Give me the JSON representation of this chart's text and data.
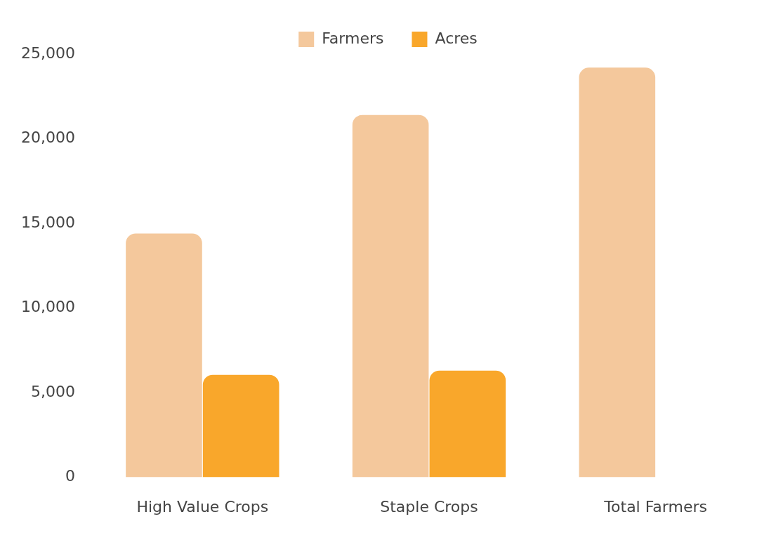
{
  "chart_data": {
    "type": "bar",
    "categories": [
      "High Value Crops",
      "Staple Crops",
      "Total Farmers"
    ],
    "series": [
      {
        "name": "Farmers",
        "color": "#f4c89c",
        "values": [
          14400,
          21400,
          24200
        ]
      },
      {
        "name": "Acres",
        "color": "#f9a72b",
        "values": [
          6050,
          6300,
          null
        ]
      }
    ],
    "ylim": [
      0,
      25000
    ],
    "yticks": [
      0,
      {
        "value": 5000,
        "label": "5,000"
      },
      {
        "value": 10000,
        "label": "10,000"
      },
      {
        "value": 15000,
        "label": "15,000"
      },
      {
        "value": 20000,
        "label": "20,000"
      },
      {
        "value": 25000,
        "label": "25,000"
      }
    ],
    "grid": false,
    "legend": "top"
  }
}
